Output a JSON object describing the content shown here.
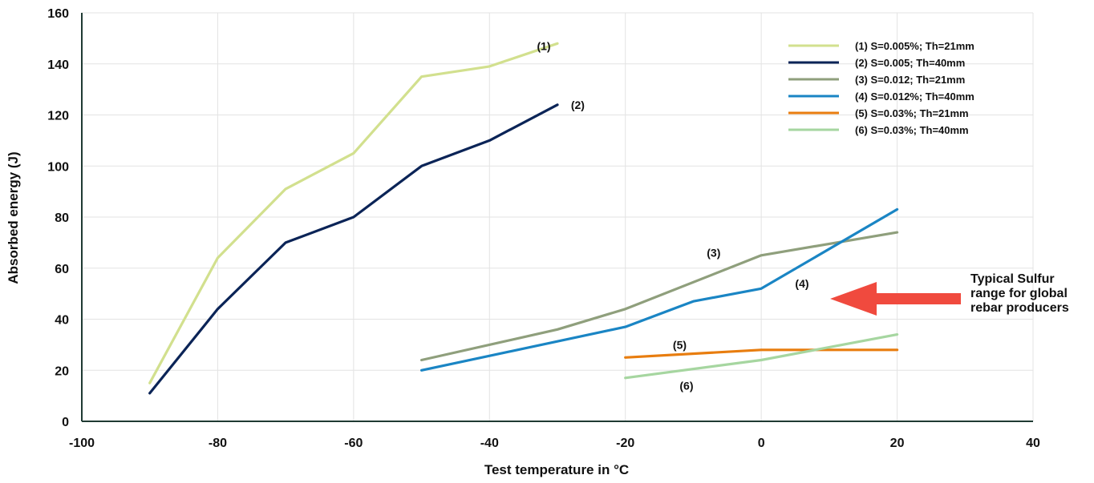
{
  "chart_data": {
    "type": "line",
    "xlabel": "Test temperature in °C",
    "ylabel": "Absorbed energy (J)",
    "xlim": [
      -100,
      40
    ],
    "ylim": [
      0,
      160
    ],
    "x_ticks": [
      -100,
      -80,
      -60,
      -40,
      -20,
      0,
      20,
      40
    ],
    "y_ticks": [
      0,
      20,
      40,
      60,
      80,
      100,
      120,
      140,
      160
    ],
    "grid": true,
    "legend_position": "top-right",
    "series": [
      {
        "name": "(1)   S=0.005%; Th=21mm",
        "label": "(1)",
        "color": "#d2e08e",
        "x": [
          -90,
          -80,
          -70,
          -60,
          -50,
          -40,
          -30
        ],
        "y": [
          15,
          64,
          91,
          105,
          135,
          139,
          148
        ]
      },
      {
        "name": "(2)   S=0.005; Th=40mm",
        "label": "(2)",
        "color": "#0b2457",
        "x": [
          -90,
          -80,
          -70,
          -60,
          -50,
          -40,
          -30
        ],
        "y": [
          11,
          44,
          70,
          80,
          100,
          110,
          124
        ]
      },
      {
        "name": "(3)   S=0.012; Th=21mm",
        "label": "(3)",
        "color": "#8f9f7c",
        "x": [
          -50,
          -30,
          -20,
          0,
          20
        ],
        "y": [
          24,
          36,
          44,
          65,
          74
        ]
      },
      {
        "name": "(4)   S=0.012%; Th=40mm",
        "label": "(4)",
        "color": "#1a85c4",
        "x": [
          -50,
          -20,
          -10,
          0,
          20
        ],
        "y": [
          20,
          37,
          47,
          52,
          83
        ]
      },
      {
        "name": "(5)   S=0.03%; Th=21mm",
        "label": "(5)",
        "color": "#e87d0f",
        "x": [
          -20,
          0,
          20
        ],
        "y": [
          25,
          28,
          28
        ]
      },
      {
        "name": "(6)   S=0.03%; Th=40mm",
        "label": "(6)",
        "color": "#a6d6a0",
        "x": [
          -20,
          0,
          20
        ],
        "y": [
          17,
          24,
          34
        ]
      }
    ],
    "annotations": [
      {
        "text_lines": [
          "Typical Sulfur",
          "range for global",
          "rebar producers"
        ],
        "arrow_color": "#f04a3e"
      }
    ]
  }
}
